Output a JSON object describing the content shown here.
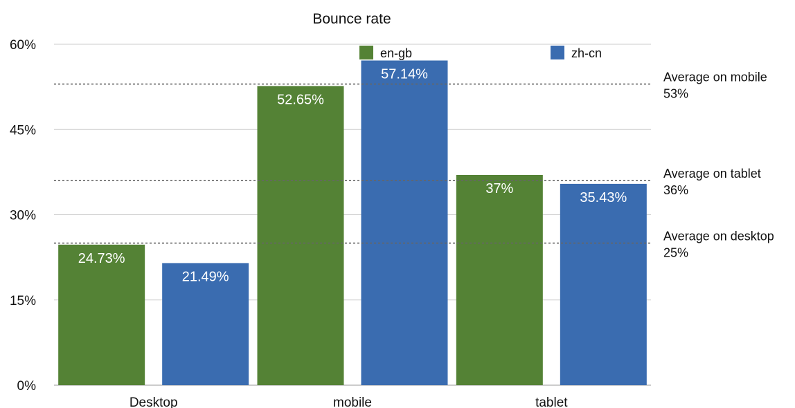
{
  "chart_data": {
    "type": "bar",
    "title": "Bounce rate",
    "categories": [
      "Desktop",
      "mobile",
      "tablet"
    ],
    "series": [
      {
        "name": "en-gb",
        "color": "#548235",
        "values": [
          24.73,
          52.65,
          37
        ],
        "labels": [
          "24.73%",
          "52.65%",
          "37%"
        ]
      },
      {
        "name": "zh-cn",
        "color": "#3a6cb0",
        "values": [
          21.49,
          57.14,
          35.43
        ],
        "labels": [
          "21.49%",
          "57.14%",
          "35.43%"
        ]
      }
    ],
    "ylim": [
      0,
      60
    ],
    "yticks": [
      0,
      15,
      30,
      45,
      60
    ],
    "ytick_labels": [
      "0%",
      "15%",
      "30%",
      "45%",
      "60%"
    ],
    "grid": true,
    "legend_position": "top",
    "reference_lines": [
      {
        "value": 53,
        "label": "Average on mobile",
        "value_label": "53%"
      },
      {
        "value": 36,
        "label": "Average on tablet",
        "value_label": "36%"
      },
      {
        "value": 25,
        "label": "Average on desktop",
        "value_label": "25%"
      }
    ]
  }
}
